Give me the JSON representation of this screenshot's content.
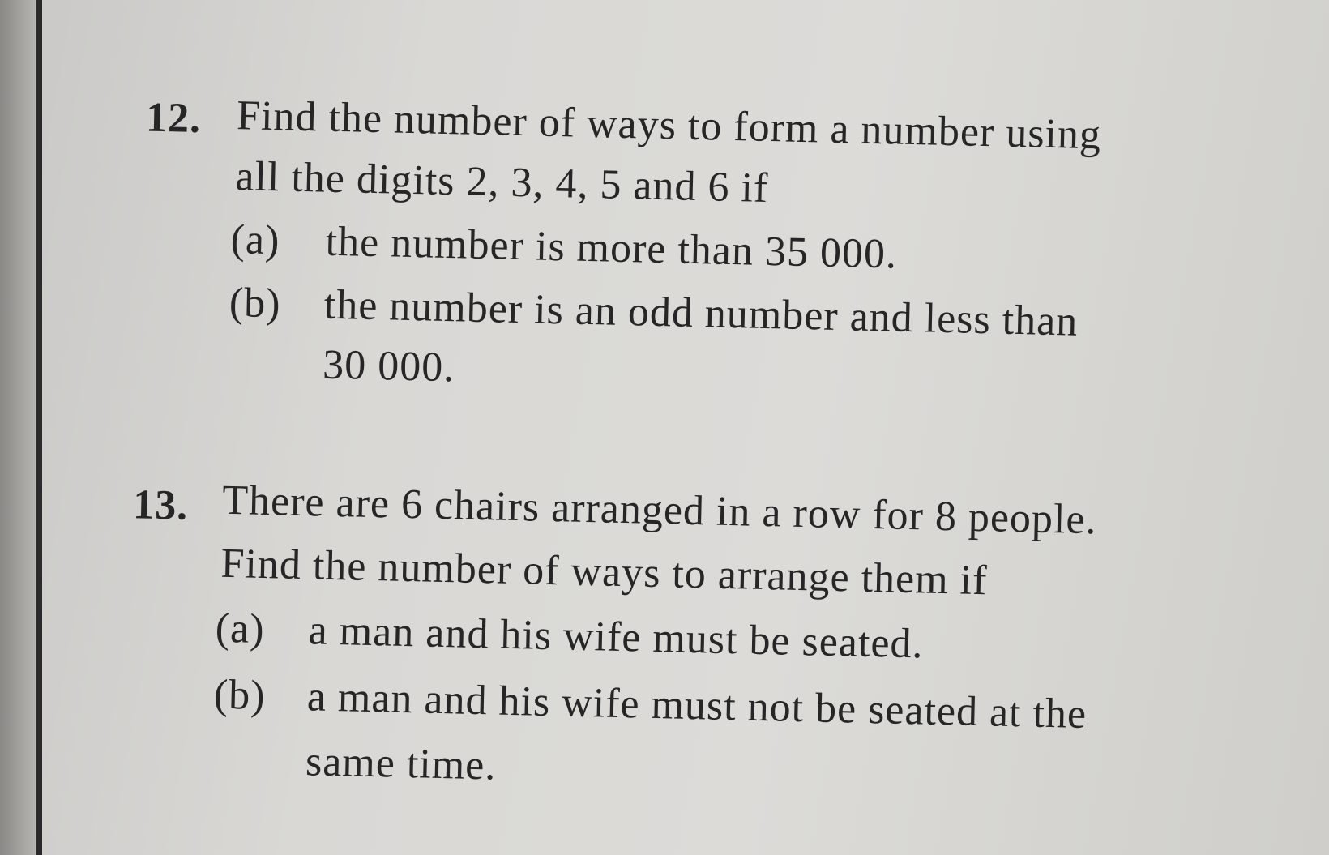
{
  "questions": [
    {
      "number": "12.",
      "stem": [
        "Find the number of ways to form a number using",
        "all the digits 2, 3, 4, 5 and 6 if"
      ],
      "parts": [
        {
          "label": "(a)",
          "lines": [
            "the number is more than 35 000."
          ]
        },
        {
          "label": "(b)",
          "lines": [
            "the number is an odd number and less than",
            "30 000."
          ]
        }
      ]
    },
    {
      "number": "13.",
      "stem": [
        "There are 6 chairs arranged in a row for 8 people.",
        "Find the number of ways to arrange them if"
      ],
      "parts": [
        {
          "label": "(a)",
          "lines": [
            "a man and his wife must be seated."
          ]
        },
        {
          "label": "(b)",
          "lines": [
            "a man and his wife must not be seated at the",
            "same time."
          ]
        }
      ]
    }
  ]
}
